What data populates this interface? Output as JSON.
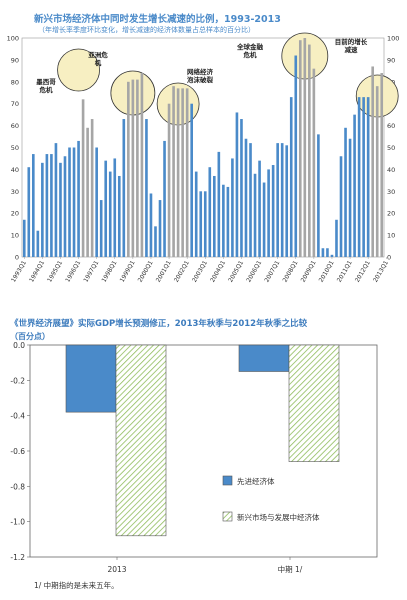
{
  "chart_data": [
    {
      "type": "bar",
      "title": "新兴市场经济体中同时发生增长减速的比例，1993-2013",
      "subtitle": "（年增长率季度环比变化，增长减速的经济体数量占总样本的百分比）",
      "ylim": [
        0,
        100
      ],
      "yticks": [
        0,
        10,
        20,
        30,
        40,
        50,
        60,
        70,
        80,
        90,
        100
      ],
      "bar_color": "#4a8ac9",
      "highlight_color": "#a6a6a6",
      "circle_fill": "#f7efc2",
      "tick_labels": [
        "1993Q1",
        "1994Q1",
        "1995Q1",
        "1996Q1",
        "1997Q1",
        "1998Q1",
        "1999Q1",
        "2000Q1",
        "2001Q1",
        "2002Q1",
        "2003Q1",
        "2004Q1",
        "2005Q1",
        "2006Q1",
        "2007Q1",
        "2008Q1",
        "2009Q1",
        "2010Q1",
        "2011Q1",
        "2012Q1",
        "2013Q1"
      ],
      "values": [
        17,
        41,
        47,
        12,
        43,
        47,
        47,
        52,
        43,
        46,
        50,
        50,
        53,
        72,
        59,
        63,
        50,
        26,
        44,
        39,
        45,
        37,
        63,
        80,
        81,
        81,
        84,
        63,
        29,
        14,
        26,
        53,
        70,
        78,
        77,
        77,
        77,
        70,
        39,
        30,
        30,
        41,
        37,
        48,
        33,
        32,
        45,
        66,
        63,
        54,
        52,
        38,
        44,
        34,
        40,
        42,
        52,
        52,
        51,
        73,
        92,
        99,
        100,
        97,
        86,
        56,
        4,
        4,
        1,
        17,
        46,
        59,
        54,
        65,
        73,
        73,
        73,
        87,
        78,
        84
      ],
      "highlight_indices": [
        13,
        14,
        15,
        23,
        24,
        25,
        26,
        32,
        33,
        34,
        35,
        36,
        61,
        62,
        63,
        64,
        77,
        78,
        79
      ],
      "annotations": [
        {
          "label": "墨西哥\n危机",
          "index": 12
        },
        {
          "label": "亚洲危\n机",
          "index": 24
        },
        {
          "label": "网络经济\n泡沫破裂",
          "index": 34
        },
        {
          "label": "全球金融\n危机",
          "index": 62
        },
        {
          "label": "目前的增长\n减速",
          "index": 78
        }
      ]
    },
    {
      "type": "bar",
      "title": "《世界经济展望》实际GDP增长预测修正，2013年秋季与2012年秋季之比较",
      "subtitle": "（百分点）",
      "categories": [
        "2013",
        "中期 1/"
      ],
      "ylim": [
        -1.2,
        0.0
      ],
      "yticks": [
        "0.0",
        "-0.2",
        "-0.4",
        "-0.6",
        "-0.8",
        "-1.0",
        "-1.2"
      ],
      "series": [
        {
          "name": "先进经济体",
          "values": [
            -0.38,
            -0.15
          ],
          "color": "#4a8ac9"
        },
        {
          "name": "新兴市场与发展中经济体",
          "values": [
            -1.08,
            -0.66
          ],
          "color": "#8fbc5c"
        }
      ],
      "note": "1/ 中期指的是未来五年。"
    }
  ]
}
